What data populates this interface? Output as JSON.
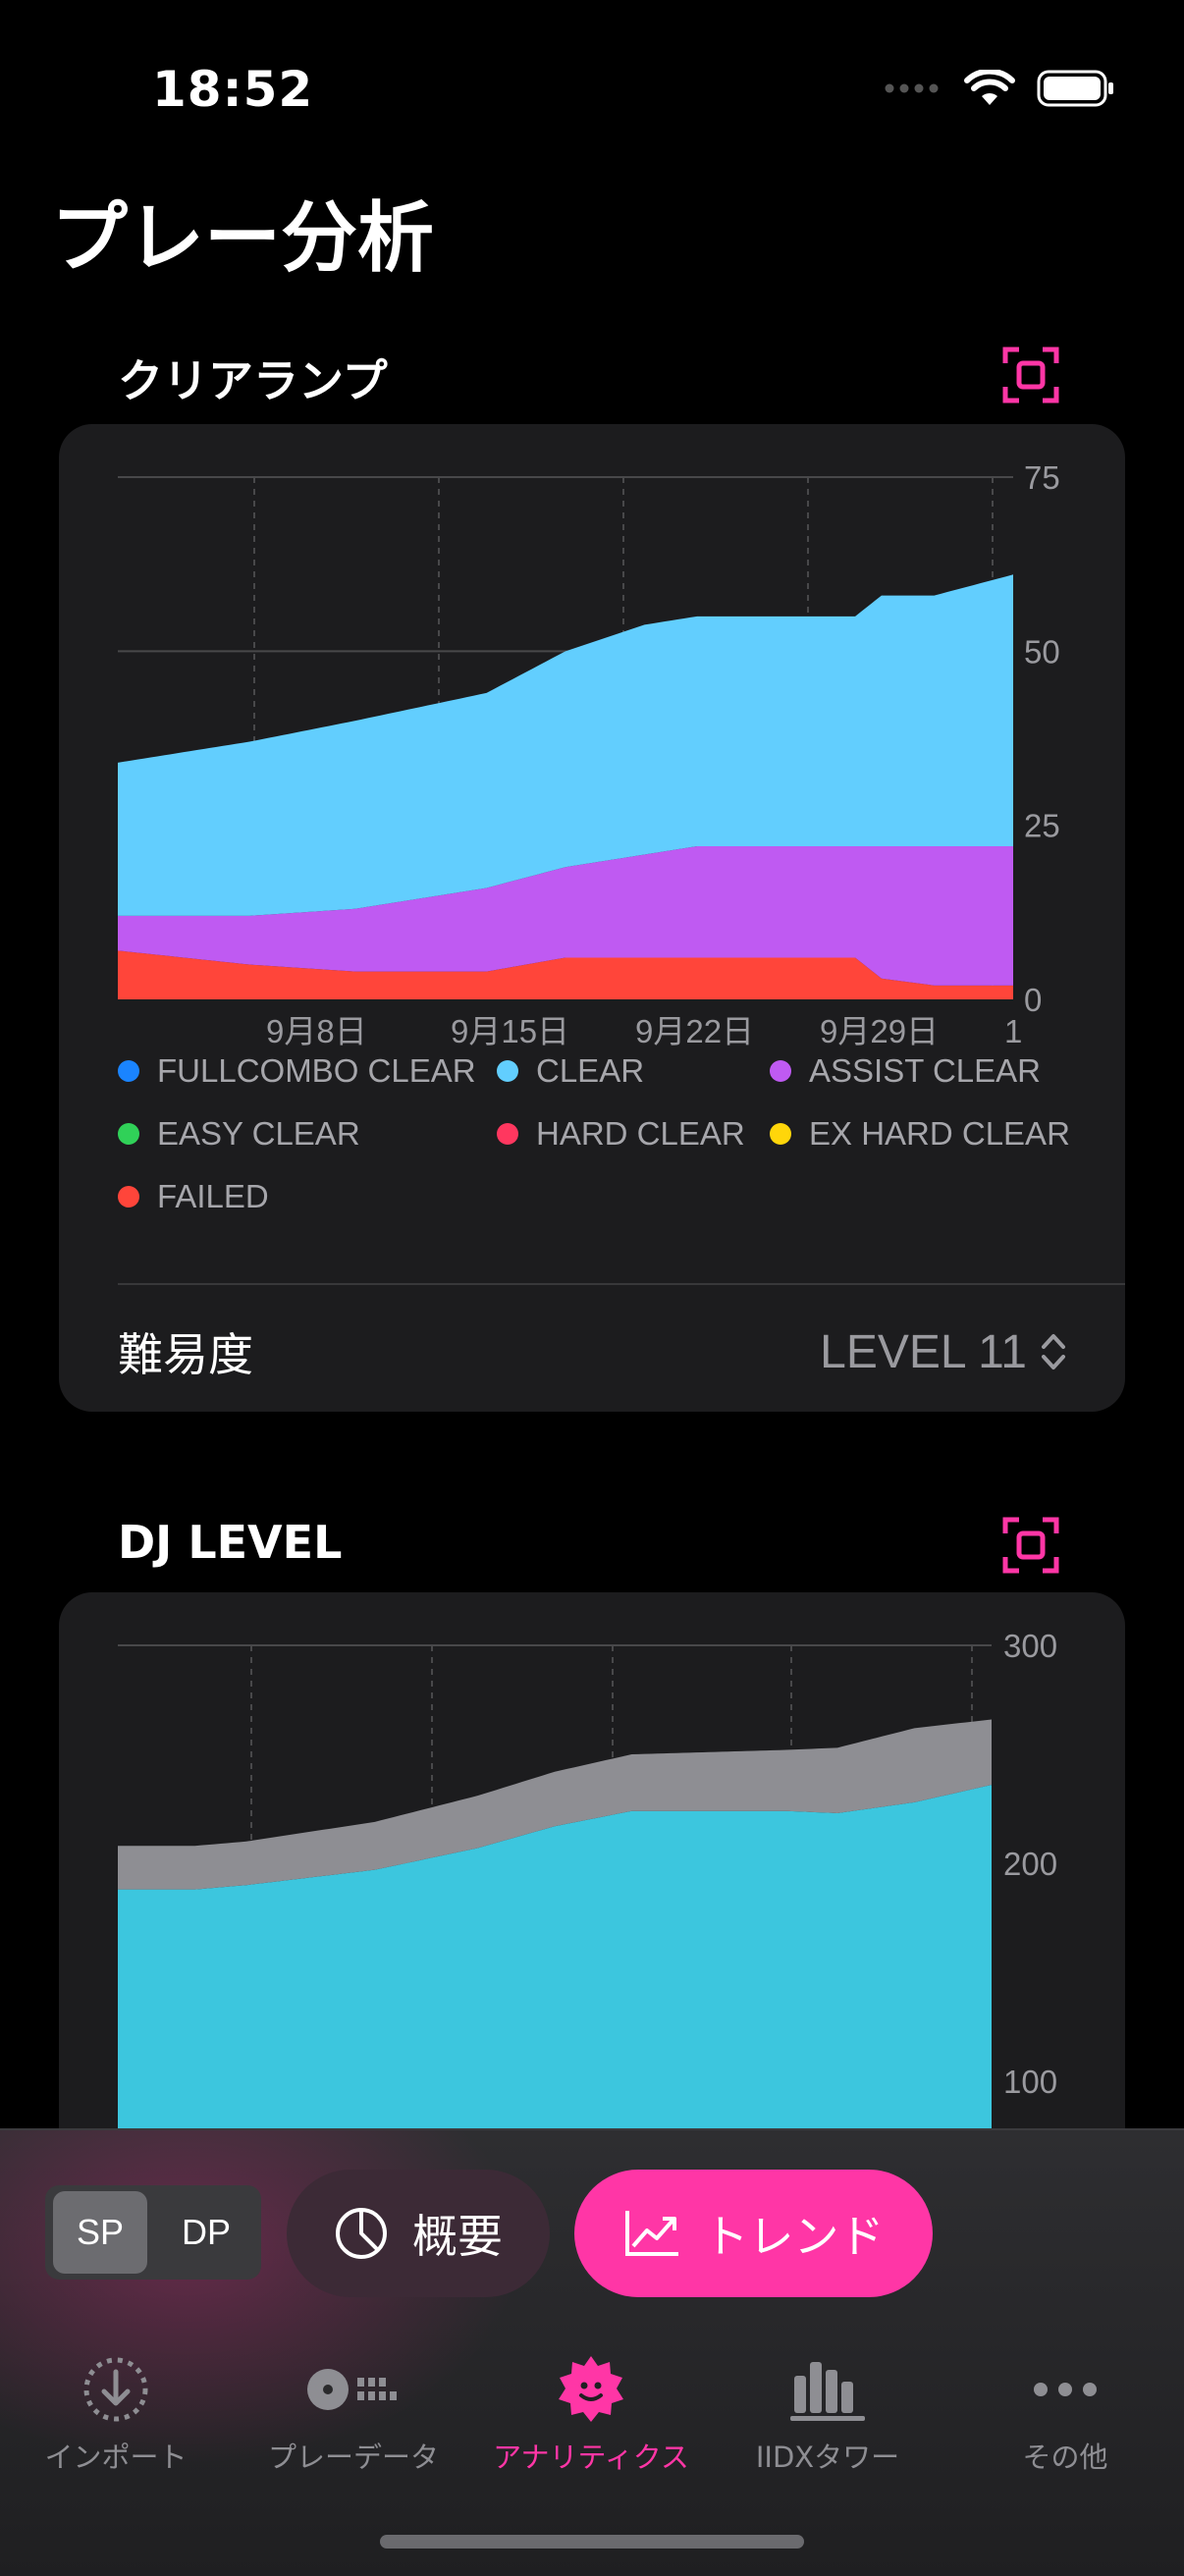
{
  "status": {
    "time": "18:52"
  },
  "page": {
    "title": "プレー分析"
  },
  "colors": {
    "accent": "#ff36a6",
    "fullcombo": "#1a84ff",
    "clear": "#62cefe",
    "assist": "#bf5af2",
    "easy": "#30d158",
    "hard": "#ff375f",
    "exhard": "#ffd60a",
    "failed": "#ff453a",
    "djlevel_gray": "#8e8e93",
    "djlevel_cyan": "#3cc6de",
    "djlevel_pink": "#ff2d92"
  },
  "clear_lamp": {
    "title": "クリアランプ",
    "focus_icon": "focus-frame-icon",
    "legend": [
      {
        "label": "FULLCOMBO CLEAR",
        "color": "#1a84ff"
      },
      {
        "label": "CLEAR",
        "color": "#62cefe"
      },
      {
        "label": "ASSIST CLEAR",
        "color": "#bf5af2"
      },
      {
        "label": "EASY CLEAR",
        "color": "#30d158"
      },
      {
        "label": "HARD CLEAR",
        "color": "#ff375f"
      },
      {
        "label": "EX HARD CLEAR",
        "color": "#ffd60a"
      },
      {
        "label": "FAILED",
        "color": "#ff453a"
      }
    ],
    "difficulty_label": "難易度",
    "difficulty_value": "LEVEL 11"
  },
  "dj_level": {
    "title": "DJ LEVEL",
    "focus_icon": "focus-frame-icon"
  },
  "chart_data": [
    {
      "type": "area",
      "stacked": true,
      "x_ticks": [
        "9月8日",
        "9月15日",
        "9月22日",
        "9月29日",
        "1"
      ],
      "y_ticks": [
        "0",
        "25",
        "50",
        "75"
      ],
      "ylim": [
        0,
        75
      ],
      "grid": true,
      "series": [
        {
          "name": "FAILED",
          "color": "#ff453a",
          "points": [
            [
              0,
              7
            ],
            [
              5,
              5
            ],
            [
              9,
              4
            ],
            [
              14,
              4
            ],
            [
              17,
              6
            ],
            [
              22,
              6
            ],
            [
              28,
              6
            ],
            [
              29,
              3
            ],
            [
              31,
              2
            ],
            [
              34,
              2
            ]
          ]
        },
        {
          "name": "ASSIST CLEAR",
          "color": "#bf5af2",
          "points": [
            [
              0,
              5
            ],
            [
              5,
              7
            ],
            [
              9,
              9
            ],
            [
              14,
              12
            ],
            [
              17,
              13
            ],
            [
              22,
              16
            ],
            [
              28,
              16
            ],
            [
              29,
              19
            ],
            [
              31,
              20
            ],
            [
              34,
              20
            ]
          ]
        },
        {
          "name": "CLEAR",
          "color": "#62cefe",
          "points": [
            [
              0,
              22
            ],
            [
              5,
              25
            ],
            [
              9,
              27
            ],
            [
              14,
              28
            ],
            [
              17,
              31
            ],
            [
              20,
              33
            ],
            [
              22,
              33
            ],
            [
              28,
              33
            ],
            [
              29,
              36
            ],
            [
              31,
              36
            ],
            [
              34,
              39
            ]
          ]
        }
      ]
    },
    {
      "type": "area",
      "stacked": true,
      "y_ticks": [
        "100",
        "200",
        "300"
      ],
      "ylim": [
        0,
        300
      ],
      "grid": true,
      "series": [
        {
          "name": "",
          "color": "#ff2d92",
          "points": [
            [
              0,
              8
            ],
            [
              3,
              2
            ],
            [
              5,
              0
            ],
            [
              34,
              0
            ]
          ]
        },
        {
          "name": "",
          "color": "#3cc6de",
          "points": [
            [
              0,
              180
            ],
            [
              5,
              190
            ],
            [
              10,
              197
            ],
            [
              14,
              207
            ],
            [
              17,
              217
            ],
            [
              20,
              224
            ],
            [
              26,
              224
            ],
            [
              28,
              223
            ],
            [
              31,
              228
            ],
            [
              34,
              236
            ]
          ]
        },
        {
          "name": "",
          "color": "#8e8e93",
          "points": [
            [
              0,
              20
            ],
            [
              5,
              20
            ],
            [
              10,
              22
            ],
            [
              14,
              24
            ],
            [
              17,
              25
            ],
            [
              20,
              26
            ],
            [
              26,
              28
            ],
            [
              28,
              30
            ],
            [
              31,
              34
            ],
            [
              34,
              30
            ]
          ]
        }
      ]
    }
  ],
  "segment": {
    "sp": "SP",
    "dp": "DP",
    "selected": "SP"
  },
  "mode_buttons": {
    "overview": {
      "label": "概要",
      "icon": "pie-chart-icon"
    },
    "trend": {
      "label": "トレンド",
      "icon": "trend-chart-icon",
      "selected": true
    }
  },
  "tabs": [
    {
      "label": "インポート",
      "icon": "import-icon"
    },
    {
      "label": "プレーデータ",
      "icon": "play-data-icon"
    },
    {
      "label": "アナリティクス",
      "icon": "analytics-icon",
      "active": true
    },
    {
      "label": "IIDXタワー",
      "icon": "tower-icon"
    },
    {
      "label": "その他",
      "icon": "more-icon"
    }
  ]
}
